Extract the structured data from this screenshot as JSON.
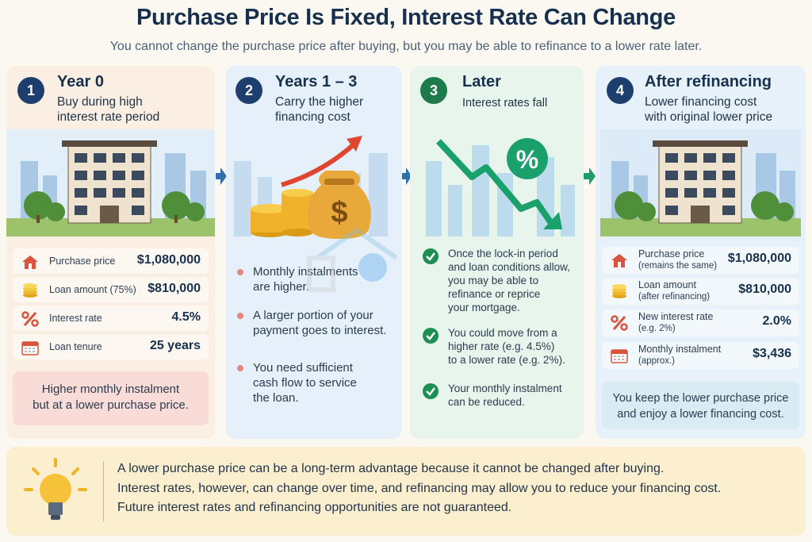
{
  "header": {
    "title": "Purchase Price Is Fixed, Interest Rate Can Change",
    "subtitle": "You cannot change the purchase price after buying, but you may be able to refinance to a lower rate later."
  },
  "panel1": {
    "number": "1",
    "title": "Year 0",
    "desc_line1": "Buy during high",
    "desc_line2": "interest rate period",
    "rows": [
      {
        "label": "Purchase price",
        "value": "$1,080,000",
        "icon": "house-icon"
      },
      {
        "label": "Loan amount (75%)",
        "value": "$810,000",
        "icon": "coins-icon"
      },
      {
        "label": "Interest rate",
        "value": "4.5%",
        "icon": "percent-icon"
      },
      {
        "label": "Loan tenure",
        "value": "25 years",
        "icon": "calendar-icon"
      }
    ],
    "callout_line1": "Higher monthly instalment",
    "callout_line2": "but at a lower purchase price."
  },
  "panel2": {
    "number": "2",
    "title": "Years 1 – 3",
    "desc_line1": "Carry the higher",
    "desc_line2": "financing cost",
    "bullets": [
      {
        "line1": "Monthly instalments",
        "line2": "are higher.",
        "line3": ""
      },
      {
        "line1": "A larger portion of your",
        "line2": "payment goes to interest.",
        "line3": ""
      },
      {
        "line1": "You need sufficient",
        "line2": "cash flow to service",
        "line3": "the loan."
      }
    ]
  },
  "panel3": {
    "number": "3",
    "title": "Later",
    "desc_line1": "Interest rates fall",
    "percent_symbol": "%",
    "checks": [
      {
        "line1": "Once the lock-in period",
        "line2": "and loan conditions allow,",
        "line3": "you may be able to",
        "line4": "refinance or reprice",
        "line5": "your mortgage."
      },
      {
        "line1": "You could move from a",
        "line2": "higher rate (e.g. 4.5%)",
        "line3": "to a lower rate (e.g. 2%).",
        "line4": "",
        "line5": ""
      },
      {
        "line1": "Your monthly instalment",
        "line2": "can be reduced.",
        "line3": "",
        "line4": "",
        "line5": ""
      }
    ]
  },
  "panel4": {
    "number": "4",
    "title": "After refinancing",
    "desc_line1": "Lower financing cost",
    "desc_line2": "with original lower price",
    "rows": [
      {
        "label": "Purchase price",
        "sublabel": "(remains the same)",
        "value": "$1,080,000",
        "icon": "house-icon"
      },
      {
        "label": "Loan amount",
        "sublabel": "(after refinancing)",
        "value": "$810,000",
        "icon": "coins-icon"
      },
      {
        "label": "New interest rate",
        "sublabel": "(e.g. 2%)",
        "value": "2.0%",
        "icon": "percent-icon"
      },
      {
        "label": "Monthly instalment",
        "sublabel": "(approx.)",
        "value": "$3,436",
        "icon": "calendar-icon"
      }
    ],
    "callout_line1": "You keep the lower purchase price",
    "callout_line2": "and enjoy a lower financing cost."
  },
  "footer": {
    "line1": "A lower purchase price can be a long-term advantage because it cannot be changed after buying.",
    "line2": "Interest rates, however, can change over time, and refinancing may allow you to reduce your financing cost.",
    "line3": "Future interest rates and refinancing opportunities are not guaranteed."
  },
  "dollar_symbol": "$",
  "colors": {
    "navy": "#1d3f6e",
    "green": "#1e7a4a",
    "arrow_blue": "#2f6fb0",
    "arrow_green": "#1f9a6b",
    "rise_red": "#e0452f",
    "fall_green": "#1aa06a"
  }
}
